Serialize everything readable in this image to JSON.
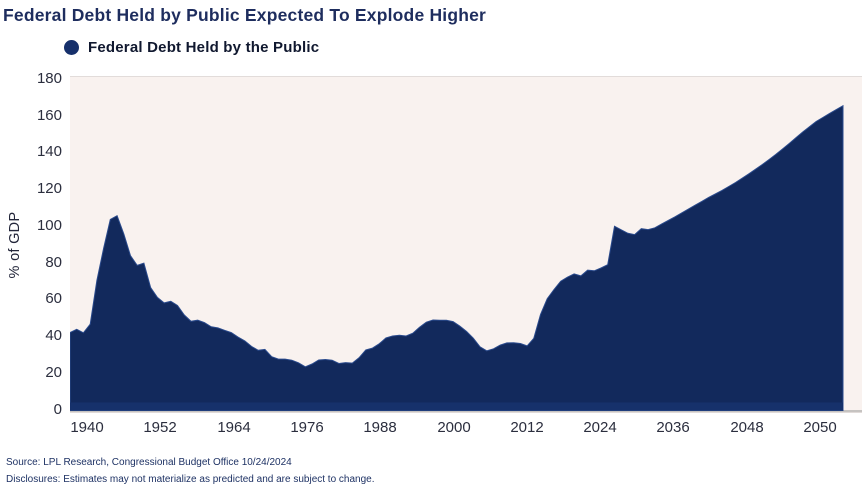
{
  "chart": {
    "title": "Federal Debt Held by Public Expected To Explode Higher",
    "legend_label": "Federal Debt Held by the Public",
    "source_line": "Source: LPL Research, Congressional Budget Office 10/24/2024",
    "disclosure_line": "Disclosures: Estimates may not materialize as predicted and are subject to change.",
    "colors": {
      "area_fill": "#12295c",
      "area_stroke": "#2a4a8c",
      "axis_bar": "#16316b",
      "baseline_grey": "#c6c3c1",
      "plot_background": "#f9f2ef",
      "title_navy": "#1e2d5e",
      "tick_text": "#2b2e3e",
      "footer_navy": "#1e3264"
    }
  },
  "chart_data": {
    "type": "area",
    "title": "Federal Debt Held by Public Expected To Explode Higher",
    "series_name": "Federal Debt Held by the Public",
    "xlabel": "",
    "ylabel": "% of GDP",
    "ylim": [
      0,
      180
    ],
    "xlim": [
      1939,
      2054
    ],
    "grid": false,
    "legend_position": "top-left",
    "yticks": [
      180,
      160,
      140,
      120,
      100,
      80,
      60,
      40,
      20,
      0
    ],
    "xticks": [
      "1940",
      "1952",
      "1964",
      "1976",
      "1988",
      "2000",
      "2012",
      "2024",
      "2036",
      "2048",
      "2050"
    ],
    "years": [
      1939,
      1940,
      1941,
      1942,
      1943,
      1944,
      1945,
      1946,
      1947,
      1948,
      1949,
      1950,
      1951,
      1952,
      1953,
      1954,
      1955,
      1956,
      1957,
      1958,
      1959,
      1960,
      1961,
      1962,
      1963,
      1964,
      1965,
      1966,
      1967,
      1968,
      1969,
      1970,
      1971,
      1972,
      1973,
      1974,
      1975,
      1976,
      1977,
      1978,
      1979,
      1980,
      1981,
      1982,
      1983,
      1984,
      1985,
      1986,
      1987,
      1988,
      1989,
      1990,
      1991,
      1992,
      1993,
      1994,
      1995,
      1996,
      1997,
      1998,
      1999,
      2000,
      2001,
      2002,
      2003,
      2004,
      2005,
      2006,
      2007,
      2008,
      2009,
      2010,
      2011,
      2012,
      2013,
      2014,
      2015,
      2016,
      2017,
      2018,
      2019,
      2020,
      2021,
      2022,
      2023,
      2024,
      2025,
      2026,
      2027,
      2028,
      2029,
      2030,
      2031,
      2032,
      2033,
      2034,
      2035,
      2036,
      2037,
      2038,
      2039,
      2040,
      2041,
      2042,
      2043,
      2044,
      2045,
      2046,
      2047,
      2048,
      2049,
      2050,
      2051,
      2052,
      2053,
      2054
    ],
    "values": [
      42.5,
      44.2,
      42.3,
      47.0,
      70.9,
      88.3,
      104.0,
      106.1,
      96.2,
      84.3,
      79.0,
      80.2,
      66.9,
      61.6,
      58.6,
      59.5,
      57.2,
      52.0,
      48.6,
      49.2,
      47.9,
      45.6,
      45.0,
      43.7,
      42.4,
      40.0,
      37.9,
      34.9,
      32.8,
      33.3,
      29.3,
      28.0,
      28.0,
      27.4,
      26.0,
      23.8,
      25.3,
      27.5,
      27.8,
      27.4,
      25.6,
      26.1,
      25.8,
      28.7,
      33.0,
      34.0,
      36.3,
      39.5,
      40.6,
      41.0,
      40.6,
      42.1,
      45.3,
      48.1,
      49.3,
      49.2,
      49.1,
      48.4,
      45.9,
      43.0,
      39.4,
      34.7,
      32.5,
      33.6,
      35.6,
      36.8,
      36.9,
      36.5,
      35.2,
      39.3,
      52.3,
      60.9,
      65.9,
      70.4,
      72.6,
      74.4,
      73.3,
      76.4,
      76.1,
      77.6,
      79.4,
      100.3,
      98.4,
      96.5,
      95.8,
      99.0,
      98.5,
      99.5,
      101.5,
      103.5,
      105.5,
      107.6,
      109.7,
      111.8,
      113.9,
      116.0,
      117.9,
      119.9,
      122.0,
      124.2,
      126.5,
      128.9,
      131.4,
      134.0,
      136.7,
      139.5,
      142.4,
      145.4,
      148.5,
      151.7,
      154.5,
      157.4,
      159.6,
      161.8,
      163.9,
      166.0
    ]
  }
}
